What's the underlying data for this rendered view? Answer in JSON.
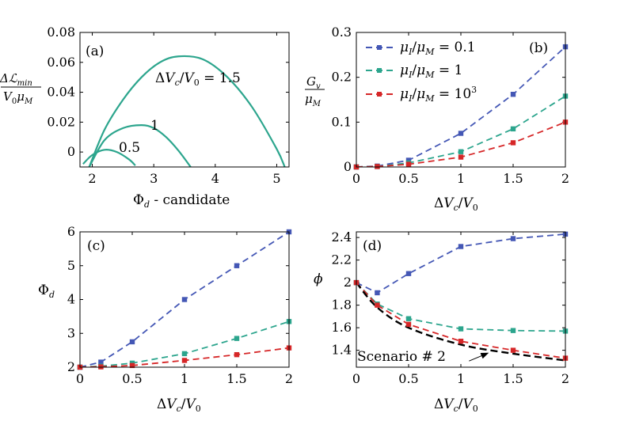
{
  "chart_data": [
    {
      "id": "a",
      "panel_label": "(a)",
      "type": "line",
      "title": "",
      "xlabel": "Φ_d - candidate",
      "ylabel": "ΔL_min / (V0 μM)",
      "xlim": [
        1.8,
        5.2
      ],
      "ylim": [
        -0.01,
        0.08
      ],
      "xticks": [
        "2",
        "3",
        "4",
        "5"
      ],
      "yticks": [
        "0",
        "0.02",
        "0.04",
        "0.06",
        "0.08"
      ],
      "xtick_values": [
        2,
        3,
        4,
        5
      ],
      "ytick_values": [
        0,
        0.02,
        0.04,
        0.06,
        0.08
      ],
      "series": [
        {
          "name": "ΔVc/V0 = 0.5",
          "label": "0.5",
          "color": "#2ca58d",
          "x": [
            1.85,
            2.0,
            2.2,
            2.4,
            2.6,
            2.7
          ],
          "y": [
            -0.008,
            -0.002,
            0.0015,
            0.0,
            -0.005,
            -0.009
          ]
        },
        {
          "name": "ΔVc/V0 = 1",
          "label": "1",
          "color": "#2ca58d",
          "x": [
            1.95,
            2.2,
            2.5,
            2.8,
            3.0,
            3.2,
            3.4,
            3.6
          ],
          "y": [
            -0.01,
            0.008,
            0.016,
            0.018,
            0.016,
            0.01,
            0.001,
            -0.01
          ]
        },
        {
          "name": "ΔVc/V0 = 1.5",
          "label": "ΔVc/V0 = 1.5",
          "color": "#2ca58d",
          "x": [
            1.95,
            2.2,
            2.5,
            2.8,
            3.1,
            3.4,
            3.8,
            4.2,
            4.6,
            5.0,
            5.13
          ],
          "y": [
            -0.01,
            0.015,
            0.035,
            0.05,
            0.06,
            0.064,
            0.062,
            0.05,
            0.03,
            0.002,
            -0.01
          ]
        }
      ]
    },
    {
      "id": "b",
      "panel_label": "(b)",
      "type": "line",
      "title": "",
      "xlabel": "ΔVc/V0",
      "ylabel": "Gv/μM",
      "xlim": [
        0,
        2
      ],
      "ylim": [
        0,
        0.3
      ],
      "xticks": [
        "0",
        "0.5",
        "1",
        "1.5",
        "2"
      ],
      "yticks": [
        "0",
        "0.1",
        "0.2",
        "0.3"
      ],
      "xtick_values": [
        0,
        0.5,
        1,
        1.5,
        2
      ],
      "ytick_values": [
        0,
        0.1,
        0.2,
        0.3
      ],
      "legend": "top-left",
      "x": [
        0,
        0.2,
        0.5,
        1,
        1.5,
        2
      ],
      "series": [
        {
          "name": "μI/μM = 0.1",
          "color": "#4457b5",
          "values": [
            0,
            0.002,
            0.015,
            0.075,
            0.162,
            0.268
          ]
        },
        {
          "name": "μI/μM = 1",
          "color": "#2ca58d",
          "values": [
            0,
            0.001,
            0.009,
            0.034,
            0.085,
            0.158
          ]
        },
        {
          "name": "μI/μM = 10³",
          "color": "#d62728",
          "values": [
            0,
            0.001,
            0.006,
            0.022,
            0.054,
            0.1
          ]
        }
      ]
    },
    {
      "id": "c",
      "panel_label": "(c)",
      "type": "line",
      "title": "",
      "xlabel": "ΔVc/V0",
      "ylabel": "Φ_d",
      "xlim": [
        0,
        2
      ],
      "ylim": [
        2,
        6
      ],
      "xticks": [
        "0",
        "0.5",
        "1",
        "1.5",
        "2"
      ],
      "yticks": [
        "2",
        "3",
        "4",
        "5",
        "6"
      ],
      "xtick_values": [
        0,
        0.5,
        1,
        1.5,
        2
      ],
      "ytick_values": [
        2,
        3,
        4,
        5,
        6
      ],
      "x": [
        0,
        0.2,
        0.5,
        1,
        1.5,
        2
      ],
      "series": [
        {
          "name": "μI/μM = 0.1",
          "color": "#4457b5",
          "values": [
            2.0,
            2.15,
            2.75,
            4.0,
            5.0,
            6.0
          ]
        },
        {
          "name": "μI/μM = 1",
          "color": "#2ca58d",
          "values": [
            2.0,
            2.03,
            2.12,
            2.4,
            2.85,
            3.35
          ]
        },
        {
          "name": "μI/μM = 10³",
          "color": "#d62728",
          "values": [
            2.0,
            2.01,
            2.05,
            2.2,
            2.37,
            2.57
          ]
        }
      ]
    },
    {
      "id": "d",
      "panel_label": "(d)",
      "type": "line",
      "title": "",
      "xlabel": "ΔVc/V0",
      "ylabel": "ϕ",
      "xlim": [
        0,
        2
      ],
      "ylim": [
        1.25,
        2.45
      ],
      "xticks": [
        "0",
        "0.5",
        "1",
        "1.5",
        "2"
      ],
      "yticks": [
        "1.4",
        "1.6",
        "1.8",
        "2",
        "2.2",
        "2.4"
      ],
      "xtick_values": [
        0,
        0.5,
        1,
        1.5,
        2
      ],
      "ytick_values": [
        1.4,
        1.6,
        1.8,
        2.0,
        2.2,
        2.4
      ],
      "x": [
        0,
        0.2,
        0.5,
        1,
        1.5,
        2
      ],
      "series": [
        {
          "name": "μI/μM = 0.1",
          "color": "#4457b5",
          "values": [
            2.0,
            1.91,
            2.08,
            2.32,
            2.39,
            2.43
          ]
        },
        {
          "name": "μI/μM = 1",
          "color": "#2ca58d",
          "values": [
            2.0,
            1.81,
            1.68,
            1.59,
            1.575,
            1.57
          ]
        },
        {
          "name": "μI/μM = 10³",
          "color": "#d62728",
          "values": [
            2.0,
            1.8,
            1.63,
            1.48,
            1.4,
            1.33
          ]
        },
        {
          "name": "Scenario # 2",
          "color": "#000000",
          "smooth": true,
          "x": [
            0,
            0.2,
            0.5,
            1,
            1.5,
            2
          ],
          "values": [
            2.0,
            1.78,
            1.6,
            1.45,
            1.37,
            1.31
          ]
        }
      ],
      "annotation": {
        "text": "Scenario # 2",
        "x": 1.0,
        "y": 1.33,
        "arrow_to": [
          1.26,
          1.375
        ]
      }
    }
  ]
}
